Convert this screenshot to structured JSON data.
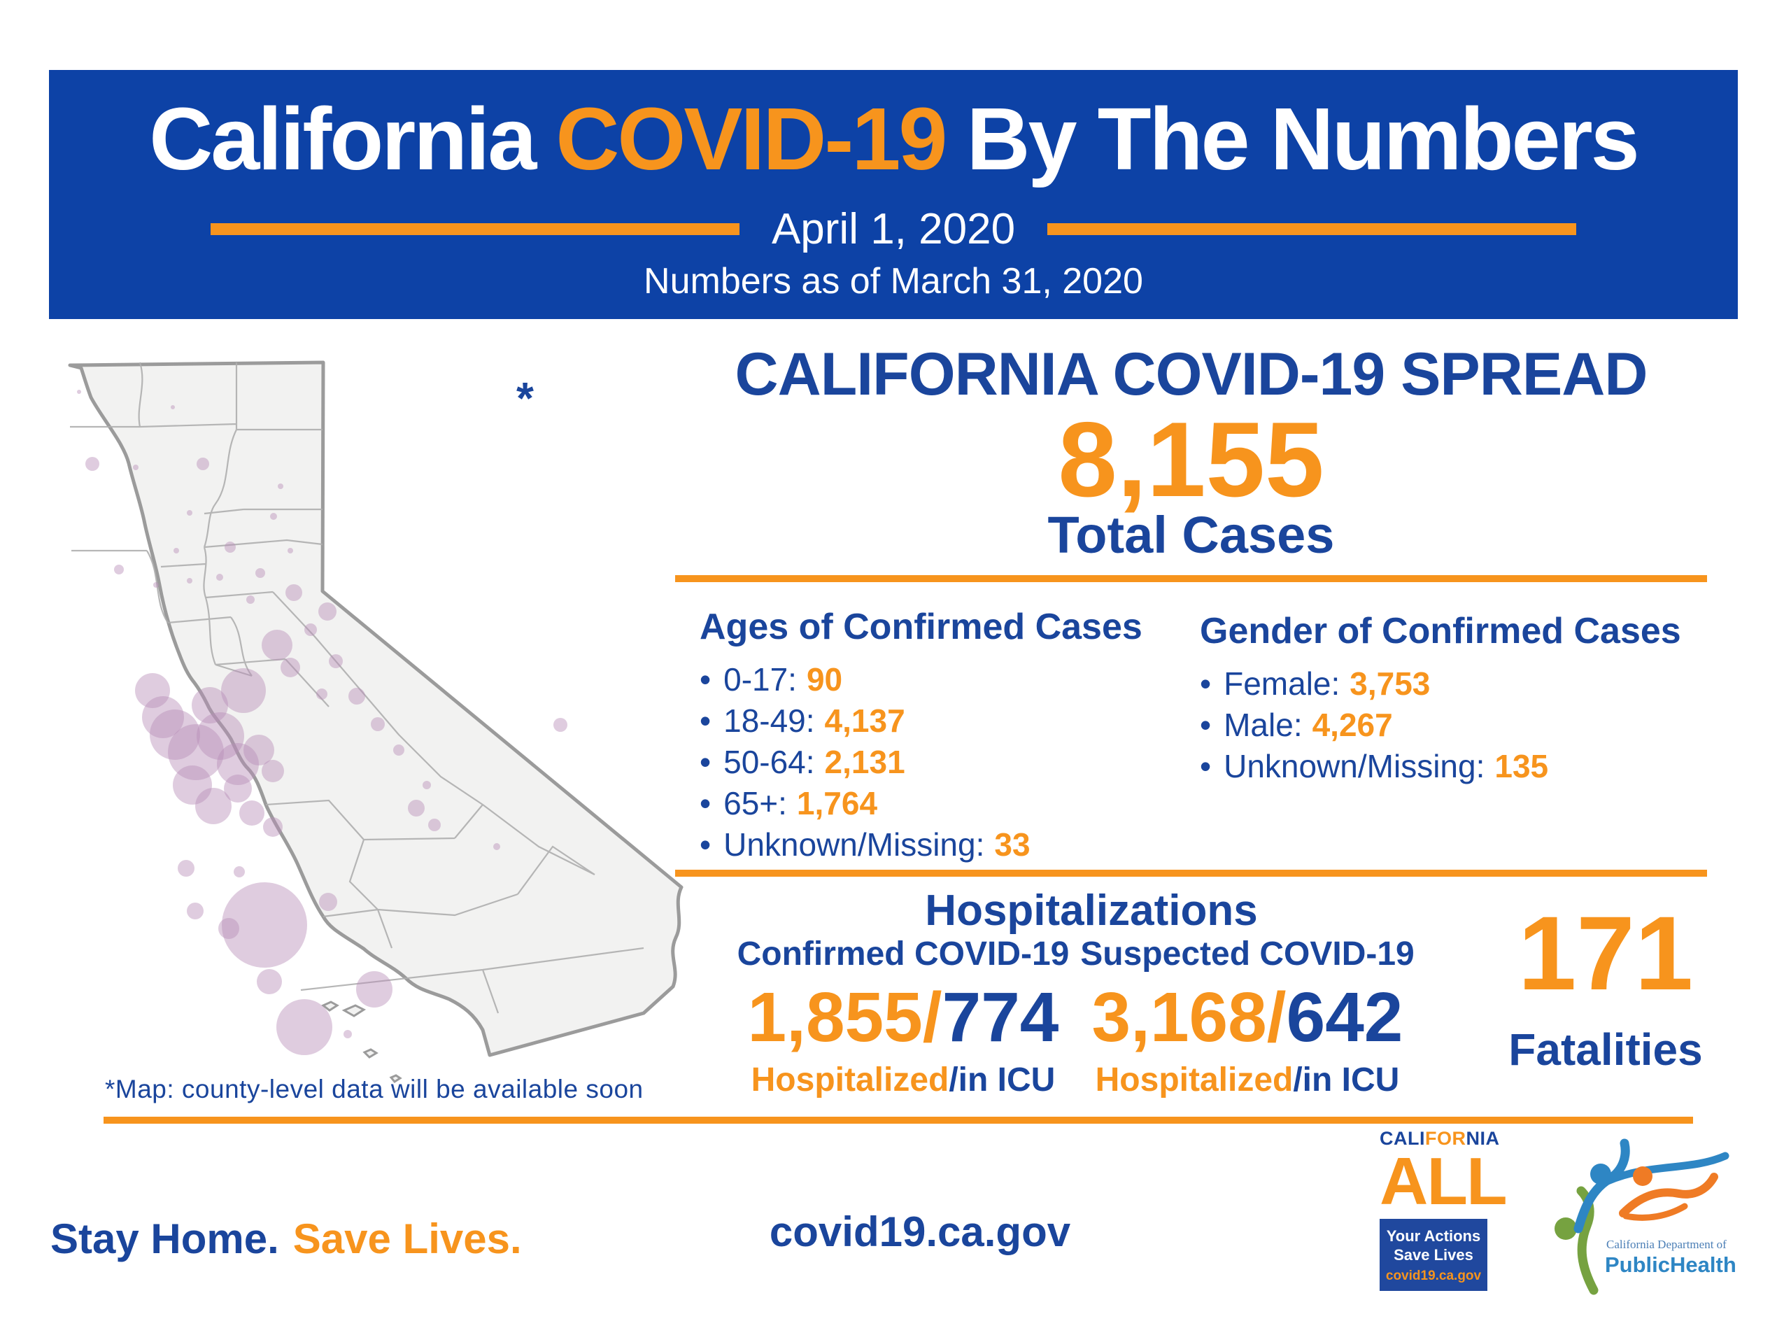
{
  "colors": {
    "band_blue": "#0d42a6",
    "text_blue": "#1a459c",
    "orange": "#f7941d",
    "bubble": "#b98fb9",
    "map_fill": "#f2f2f1",
    "map_stroke": "#9b9b9b"
  },
  "list_bullet": "•",
  "banner": {
    "title_white1": "California",
    "title_orange": "COVID-19",
    "title_white2": "By The Numbers",
    "date": "April 1, 2020",
    "subtitle": "Numbers as of March 31, 2020"
  },
  "spread": {
    "heading": "CALIFORNIA COVID-19 SPREAD",
    "total_cases": "8,155",
    "total_label": "Total Cases"
  },
  "ages": {
    "heading": "Ages of Confirmed Cases",
    "items": [
      {
        "label": "0-17:",
        "value": "90"
      },
      {
        "label": "18-49:",
        "value": "4,137"
      },
      {
        "label": "50-64:",
        "value": "2,131"
      },
      {
        "label": "65+:",
        "value": "1,764"
      },
      {
        "label": "Unknown/Missing:",
        "value": "33"
      }
    ]
  },
  "gender": {
    "heading": "Gender of Confirmed Cases",
    "items": [
      {
        "label": "Female:",
        "value": "3,753"
      },
      {
        "label": "Male:",
        "value": "4,267"
      },
      {
        "label": "Unknown/Missing:",
        "value": "135"
      }
    ]
  },
  "hospitalizations": {
    "heading": "Hospitalizations",
    "columns": [
      {
        "label": "Confirmed COVID-19",
        "hospitalized": "1,855/",
        "icu": "774"
      },
      {
        "label": "Suspected COVID-19",
        "hospitalized": "3,168/",
        "icu": "642"
      }
    ],
    "sub_orange": "Hospitalized",
    "sub_blue": "/in ICU"
  },
  "fatalities": {
    "value": "171",
    "label": "Fatalities"
  },
  "map": {
    "asterisk": "*",
    "note": "*Map: county-level data will be available soon",
    "bubbles": [
      [
        23,
        50,
        3
      ],
      [
        157,
        72,
        3
      ],
      [
        42,
        153,
        10
      ],
      [
        104,
        158,
        4
      ],
      [
        200,
        153,
        9
      ],
      [
        311,
        185,
        4
      ],
      [
        181,
        223,
        4
      ],
      [
        301,
        228,
        5
      ],
      [
        239,
        272,
        8
      ],
      [
        162,
        277,
        4
      ],
      [
        325,
        277,
        4
      ],
      [
        80,
        304,
        7
      ],
      [
        133,
        326,
        4
      ],
      [
        181,
        320,
        4
      ],
      [
        224,
        315,
        5
      ],
      [
        282,
        309,
        7
      ],
      [
        330,
        337,
        12
      ],
      [
        378,
        364,
        13
      ],
      [
        268,
        347,
        6
      ],
      [
        354,
        390,
        9
      ],
      [
        306,
        412,
        22
      ],
      [
        325,
        444,
        14
      ],
      [
        128,
        477,
        25
      ],
      [
        143,
        515,
        30
      ],
      [
        210,
        498,
        26
      ],
      [
        258,
        477,
        32
      ],
      [
        160,
        540,
        36
      ],
      [
        190,
        565,
        40
      ],
      [
        225,
        542,
        34
      ],
      [
        250,
        582,
        30
      ],
      [
        185,
        612,
        28
      ],
      [
        215,
        642,
        26
      ],
      [
        250,
        617,
        20
      ],
      [
        280,
        562,
        22
      ],
      [
        300,
        592,
        16
      ],
      [
        270,
        652,
        18
      ],
      [
        300,
        672,
        14
      ],
      [
        390,
        435,
        10
      ],
      [
        420,
        485,
        12
      ],
      [
        370,
        482,
        8
      ],
      [
        450,
        525,
        10
      ],
      [
        480,
        562,
        8
      ],
      [
        520,
        612,
        6
      ],
      [
        711,
        526,
        10
      ],
      [
        531,
        669,
        9
      ],
      [
        505,
        645,
        12
      ],
      [
        620,
        700,
        5
      ],
      [
        176,
        731,
        12
      ],
      [
        252,
        736,
        8
      ],
      [
        189,
        792,
        12
      ],
      [
        237,
        817,
        15
      ],
      [
        288,
        812,
        61
      ],
      [
        379,
        779,
        13
      ],
      [
        445,
        904,
        26
      ],
      [
        295,
        893,
        18
      ],
      [
        345,
        958,
        40
      ],
      [
        407,
        968,
        6
      ]
    ]
  },
  "footer": {
    "stay_home": "Stay Home.",
    "save_lives": "Save Lives.",
    "url": "covid19.ca.gov"
  },
  "logos": {
    "california_all": {
      "word_parts": [
        "CALI",
        "FOR",
        "NIA"
      ],
      "all": "ALL",
      "box_line1": "Your Actions",
      "box_line2": "Save Lives",
      "box_url": "covid19.ca.gov"
    },
    "cdph": {
      "line1": "California Department of",
      "line2": "PublicHealth"
    }
  }
}
